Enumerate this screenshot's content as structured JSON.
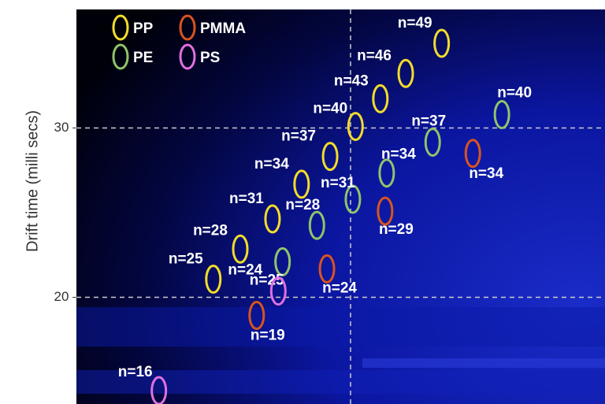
{
  "chart_data": {
    "type": "scatter",
    "y_label": "Drift time (milli secs)",
    "ylim": [
      13.7,
      37
    ],
    "yticks": [
      20,
      30
    ],
    "xlim": [
      0,
      100
    ],
    "grid": true,
    "legend": "top-left",
    "series": [
      {
        "name": "PP",
        "color": "#f2dc2a",
        "x": [
          25.9,
          31.0,
          37.1,
          42.6,
          48.0,
          52.8,
          57.5,
          62.3,
          69.1
        ],
        "values": [
          21.07,
          22.85,
          24.63,
          26.68,
          28.32,
          30.09,
          31.73,
          33.22,
          35.0
        ],
        "value_labels": [
          "n=25",
          "n=28",
          "n=31",
          "n=34",
          "n=37",
          "n=40",
          "n=43",
          "n=46",
          "n=49"
        ]
      },
      {
        "name": "PMMA",
        "color": "#d9541e",
        "x": [
          34.1,
          47.4,
          58.4,
          75.0
        ],
        "values": [
          18.93,
          21.68,
          25.09,
          28.5
        ],
        "value_labels": [
          "n=19",
          "n=24",
          "n=29",
          "n=34"
        ]
      },
      {
        "name": "PE",
        "color": "#8fc46a",
        "x": [
          39.0,
          45.5,
          52.3,
          58.7,
          67.4,
          80.5
        ],
        "values": [
          22.1,
          24.25,
          25.79,
          27.34,
          29.16,
          30.79
        ],
        "value_labels": [
          "n=25",
          "n=28",
          "n=31",
          "n=34",
          "n=37",
          "n=40"
        ]
      },
      {
        "name": "PS",
        "color": "#e070e0",
        "x": [
          15.6,
          38.2
        ],
        "values": [
          14.49,
          20.37
        ],
        "value_labels": [
          "n=16",
          "n=24"
        ]
      }
    ]
  }
}
